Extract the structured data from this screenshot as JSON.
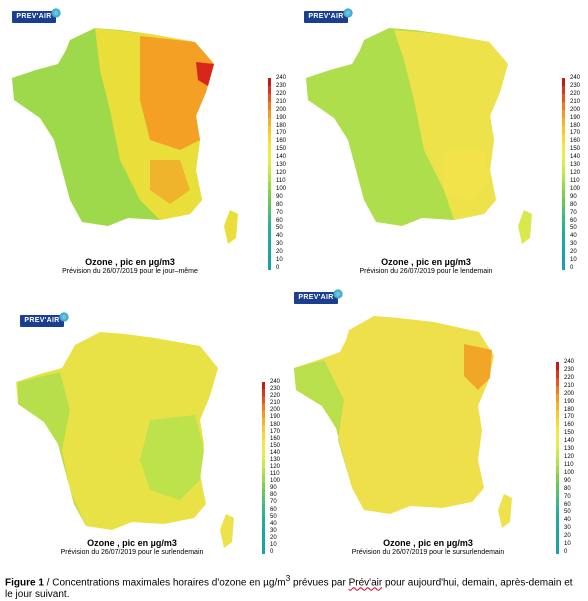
{
  "logo_text": "PREV'AIR",
  "colorbar_ticks": [
    "240",
    "230",
    "220",
    "210",
    "200",
    "190",
    "180",
    "170",
    "160",
    "150",
    "140",
    "130",
    "120",
    "110",
    "100",
    "90",
    "80",
    "70",
    "60",
    "50",
    "40",
    "30",
    "20",
    "10",
    "0"
  ],
  "colorbar_colors": [
    "#c41a1a",
    "#d9361a",
    "#e8541a",
    "#f07a1f",
    "#f29a23",
    "#f5b325",
    "#f6c92c",
    "#f6da33",
    "#f5e63f",
    "#efec48",
    "#e0ee4c",
    "#c9ea4b",
    "#b2e34a",
    "#98db49",
    "#7fd14a",
    "#66c85a",
    "#52c06e",
    "#3db884",
    "#2cb196",
    "#22ab9f",
    "#1da8a5",
    "#19a6a8",
    "#16a4aa",
    "#14a2ab"
  ],
  "panels": [
    {
      "title": "Ozone , pic en µg/m3",
      "subtitle": "Prévision du 26/07/2019 pour le jour–même"
    },
    {
      "title": "Ozone , pic en µg/m3",
      "subtitle": "Prévision du 26/07/2019 pour le lendemain"
    },
    {
      "title": "Ozone , pic en µg/m3",
      "subtitle": "Prévision du 26/07/2019 pour le surlendemain"
    },
    {
      "title": "Ozone , pic en µg/m3",
      "subtitle": "Prévision du 26/07/2019 pour le sursurlendemain"
    }
  ],
  "caption": {
    "label": "Figure 1",
    "text_before_superscript": " / Concentrations maximales horaires d'ozone en µg/m",
    "superscript": "3",
    "text_middle": " prévues par ",
    "underlined_word": "Prév'air",
    "text_after": " pour aujourd'hui, demain, après-demain et le jour suivant."
  }
}
